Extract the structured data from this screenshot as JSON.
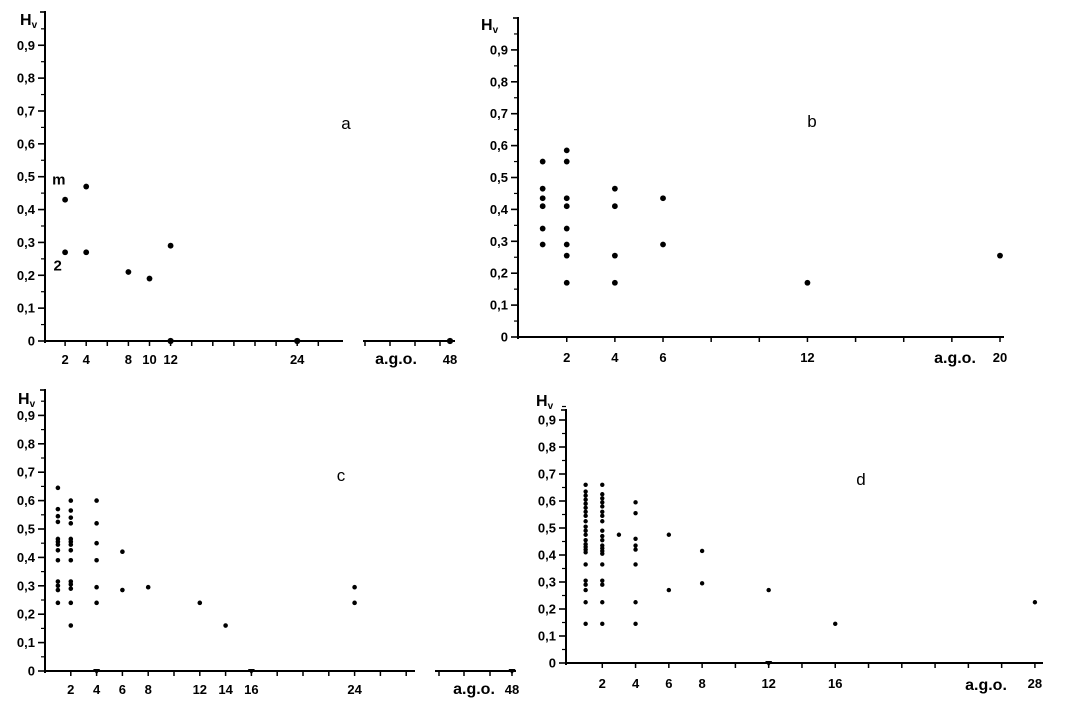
{
  "figure": {
    "background": "#ffffff",
    "ink": "#000000",
    "y_tick_labels": [
      "0",
      "0,1",
      "0,2",
      "0,3",
      "0,4",
      "0,5",
      "0,6",
      "0,7",
      "0,8",
      "0,9"
    ]
  },
  "chart_data": [
    {
      "id": "a",
      "type": "scatter",
      "panel_label": "a",
      "ylabel_main": "H",
      "ylabel_sub": "v",
      "xlabel": "a.g.o.",
      "ylim": [
        0,
        1
      ],
      "axis_break": true,
      "x_tick_labels": [
        {
          "u": 2,
          "t": "2"
        },
        {
          "u": 4,
          "t": "4"
        },
        {
          "u": 8,
          "t": "8"
        },
        {
          "u": 10,
          "t": "10"
        },
        {
          "u": 12,
          "t": "12"
        },
        {
          "u": 24,
          "t": "24"
        },
        {
          "u": 48,
          "t": "48"
        }
      ],
      "columns": [
        {
          "x": 2,
          "values": [
            0.43,
            0.27
          ]
        },
        {
          "x": 4,
          "values": [
            0.47,
            0.27
          ]
        },
        {
          "x": 8,
          "values": [
            0.21
          ]
        },
        {
          "x": 10,
          "values": [
            0.19
          ]
        },
        {
          "x": 12,
          "values": [
            0.29
          ]
        }
      ],
      "zero_dots": [
        12,
        24,
        48
      ],
      "zero_triangles": [],
      "annotations": [
        {
          "text": "m",
          "x": 1.4,
          "y": 0.49
        },
        {
          "text": "2",
          "x": 1.3,
          "y": 0.228
        }
      ]
    },
    {
      "id": "b",
      "type": "scatter",
      "panel_label": "b",
      "ylabel_main": "H",
      "ylabel_sub": "v",
      "xlabel": "a.g.o.",
      "ylim": [
        0,
        1
      ],
      "axis_break": false,
      "x_tick_labels": [
        {
          "u": 2,
          "t": "2"
        },
        {
          "u": 4,
          "t": "4"
        },
        {
          "u": 6,
          "t": "6"
        },
        {
          "u": 12,
          "t": "12"
        },
        {
          "u": 20,
          "t": "20"
        }
      ],
      "columns": [
        {
          "x": 1,
          "values": [
            0.55,
            0.465,
            0.435,
            0.41,
            0.34,
            0.29
          ]
        },
        {
          "x": 2,
          "values": [
            0.585,
            0.55,
            0.435,
            0.41,
            0.34,
            0.29,
            0.255,
            0.17
          ]
        },
        {
          "x": 4,
          "values": [
            0.465,
            0.41,
            0.255,
            0.17
          ]
        },
        {
          "x": 6,
          "values": [
            0.435,
            0.29
          ]
        },
        {
          "x": 12,
          "values": [
            0.17
          ]
        },
        {
          "x": 20,
          "values": [
            0.255
          ]
        }
      ],
      "zero_dots": [],
      "zero_triangles": [],
      "annotations": []
    },
    {
      "id": "c",
      "type": "scatter",
      "panel_label": "c",
      "ylabel_main": "H",
      "ylabel_sub": "v",
      "xlabel": "a.g.o.",
      "ylim": [
        0,
        1
      ],
      "axis_break": true,
      "x_tick_labels": [
        {
          "u": 2,
          "t": "2"
        },
        {
          "u": 4,
          "t": "4"
        },
        {
          "u": 6,
          "t": "6"
        },
        {
          "u": 8,
          "t": "8"
        },
        {
          "u": 12,
          "t": "12"
        },
        {
          "u": 14,
          "t": "14"
        },
        {
          "u": 16,
          "t": "16"
        },
        {
          "u": 24,
          "t": "24"
        },
        {
          "u": 48,
          "t": "48"
        }
      ],
      "columns": [
        {
          "x": 1,
          "values": [
            0.645,
            0.57,
            0.545,
            0.525,
            0.465,
            0.455,
            0.445,
            0.425,
            0.39,
            0.315,
            0.3,
            0.285,
            0.24
          ]
        },
        {
          "x": 2,
          "values": [
            0.6,
            0.565,
            0.54,
            0.52,
            0.465,
            0.455,
            0.445,
            0.425,
            0.39,
            0.315,
            0.305,
            0.29,
            0.24,
            0.16
          ]
        },
        {
          "x": 4,
          "values": [
            0.6,
            0.52,
            0.45,
            0.39,
            0.295,
            0.24
          ]
        },
        {
          "x": 6,
          "values": [
            0.42,
            0.285
          ]
        },
        {
          "x": 8,
          "values": [
            0.295
          ]
        },
        {
          "x": 12,
          "values": [
            0.24
          ]
        },
        {
          "x": 14,
          "values": [
            0.16
          ]
        },
        {
          "x": 24,
          "values": [
            0.295,
            0.24
          ]
        }
      ],
      "zero_dots": [],
      "zero_triangles": [
        4,
        16,
        48
      ],
      "annotations": []
    },
    {
      "id": "d",
      "type": "scatter",
      "panel_label": "d",
      "ylabel_main": "H",
      "ylabel_sub": "v",
      "xlabel": "a.g.o.",
      "ylim": [
        0,
        1
      ],
      "axis_break": false,
      "x_tick_labels": [
        {
          "u": 2,
          "t": "2"
        },
        {
          "u": 4,
          "t": "4"
        },
        {
          "u": 6,
          "t": "6"
        },
        {
          "u": 8,
          "t": "8"
        },
        {
          "u": 12,
          "t": "12"
        },
        {
          "u": 16,
          "t": "16"
        },
        {
          "u": 28,
          "t": "28"
        }
      ],
      "columns": [
        {
          "x": 1,
          "values": [
            0.66,
            0.635,
            0.62,
            0.605,
            0.59,
            0.575,
            0.56,
            0.545,
            0.525,
            0.505,
            0.49,
            0.475,
            0.455,
            0.44,
            0.43,
            0.42,
            0.41,
            0.365,
            0.305,
            0.29,
            0.27,
            0.225,
            0.145
          ]
        },
        {
          "x": 2,
          "values": [
            0.66,
            0.625,
            0.61,
            0.595,
            0.58,
            0.56,
            0.545,
            0.525,
            0.49,
            0.47,
            0.455,
            0.435,
            0.425,
            0.415,
            0.405,
            0.365,
            0.305,
            0.29,
            0.225,
            0.145
          ]
        },
        {
          "x": 3,
          "values": [
            0.475
          ]
        },
        {
          "x": 4,
          "values": [
            0.595,
            0.555,
            0.46,
            0.435,
            0.42,
            0.365,
            0.225,
            0.145
          ]
        },
        {
          "x": 6,
          "values": [
            0.475,
            0.27
          ]
        },
        {
          "x": 8,
          "values": [
            0.415,
            0.295
          ]
        },
        {
          "x": 12,
          "values": [
            0.27
          ]
        },
        {
          "x": 16,
          "values": [
            0.145
          ]
        },
        {
          "x": 28,
          "values": [
            0.225
          ]
        }
      ],
      "zero_dots": [],
      "zero_triangles": [
        12
      ],
      "annotations": []
    }
  ]
}
